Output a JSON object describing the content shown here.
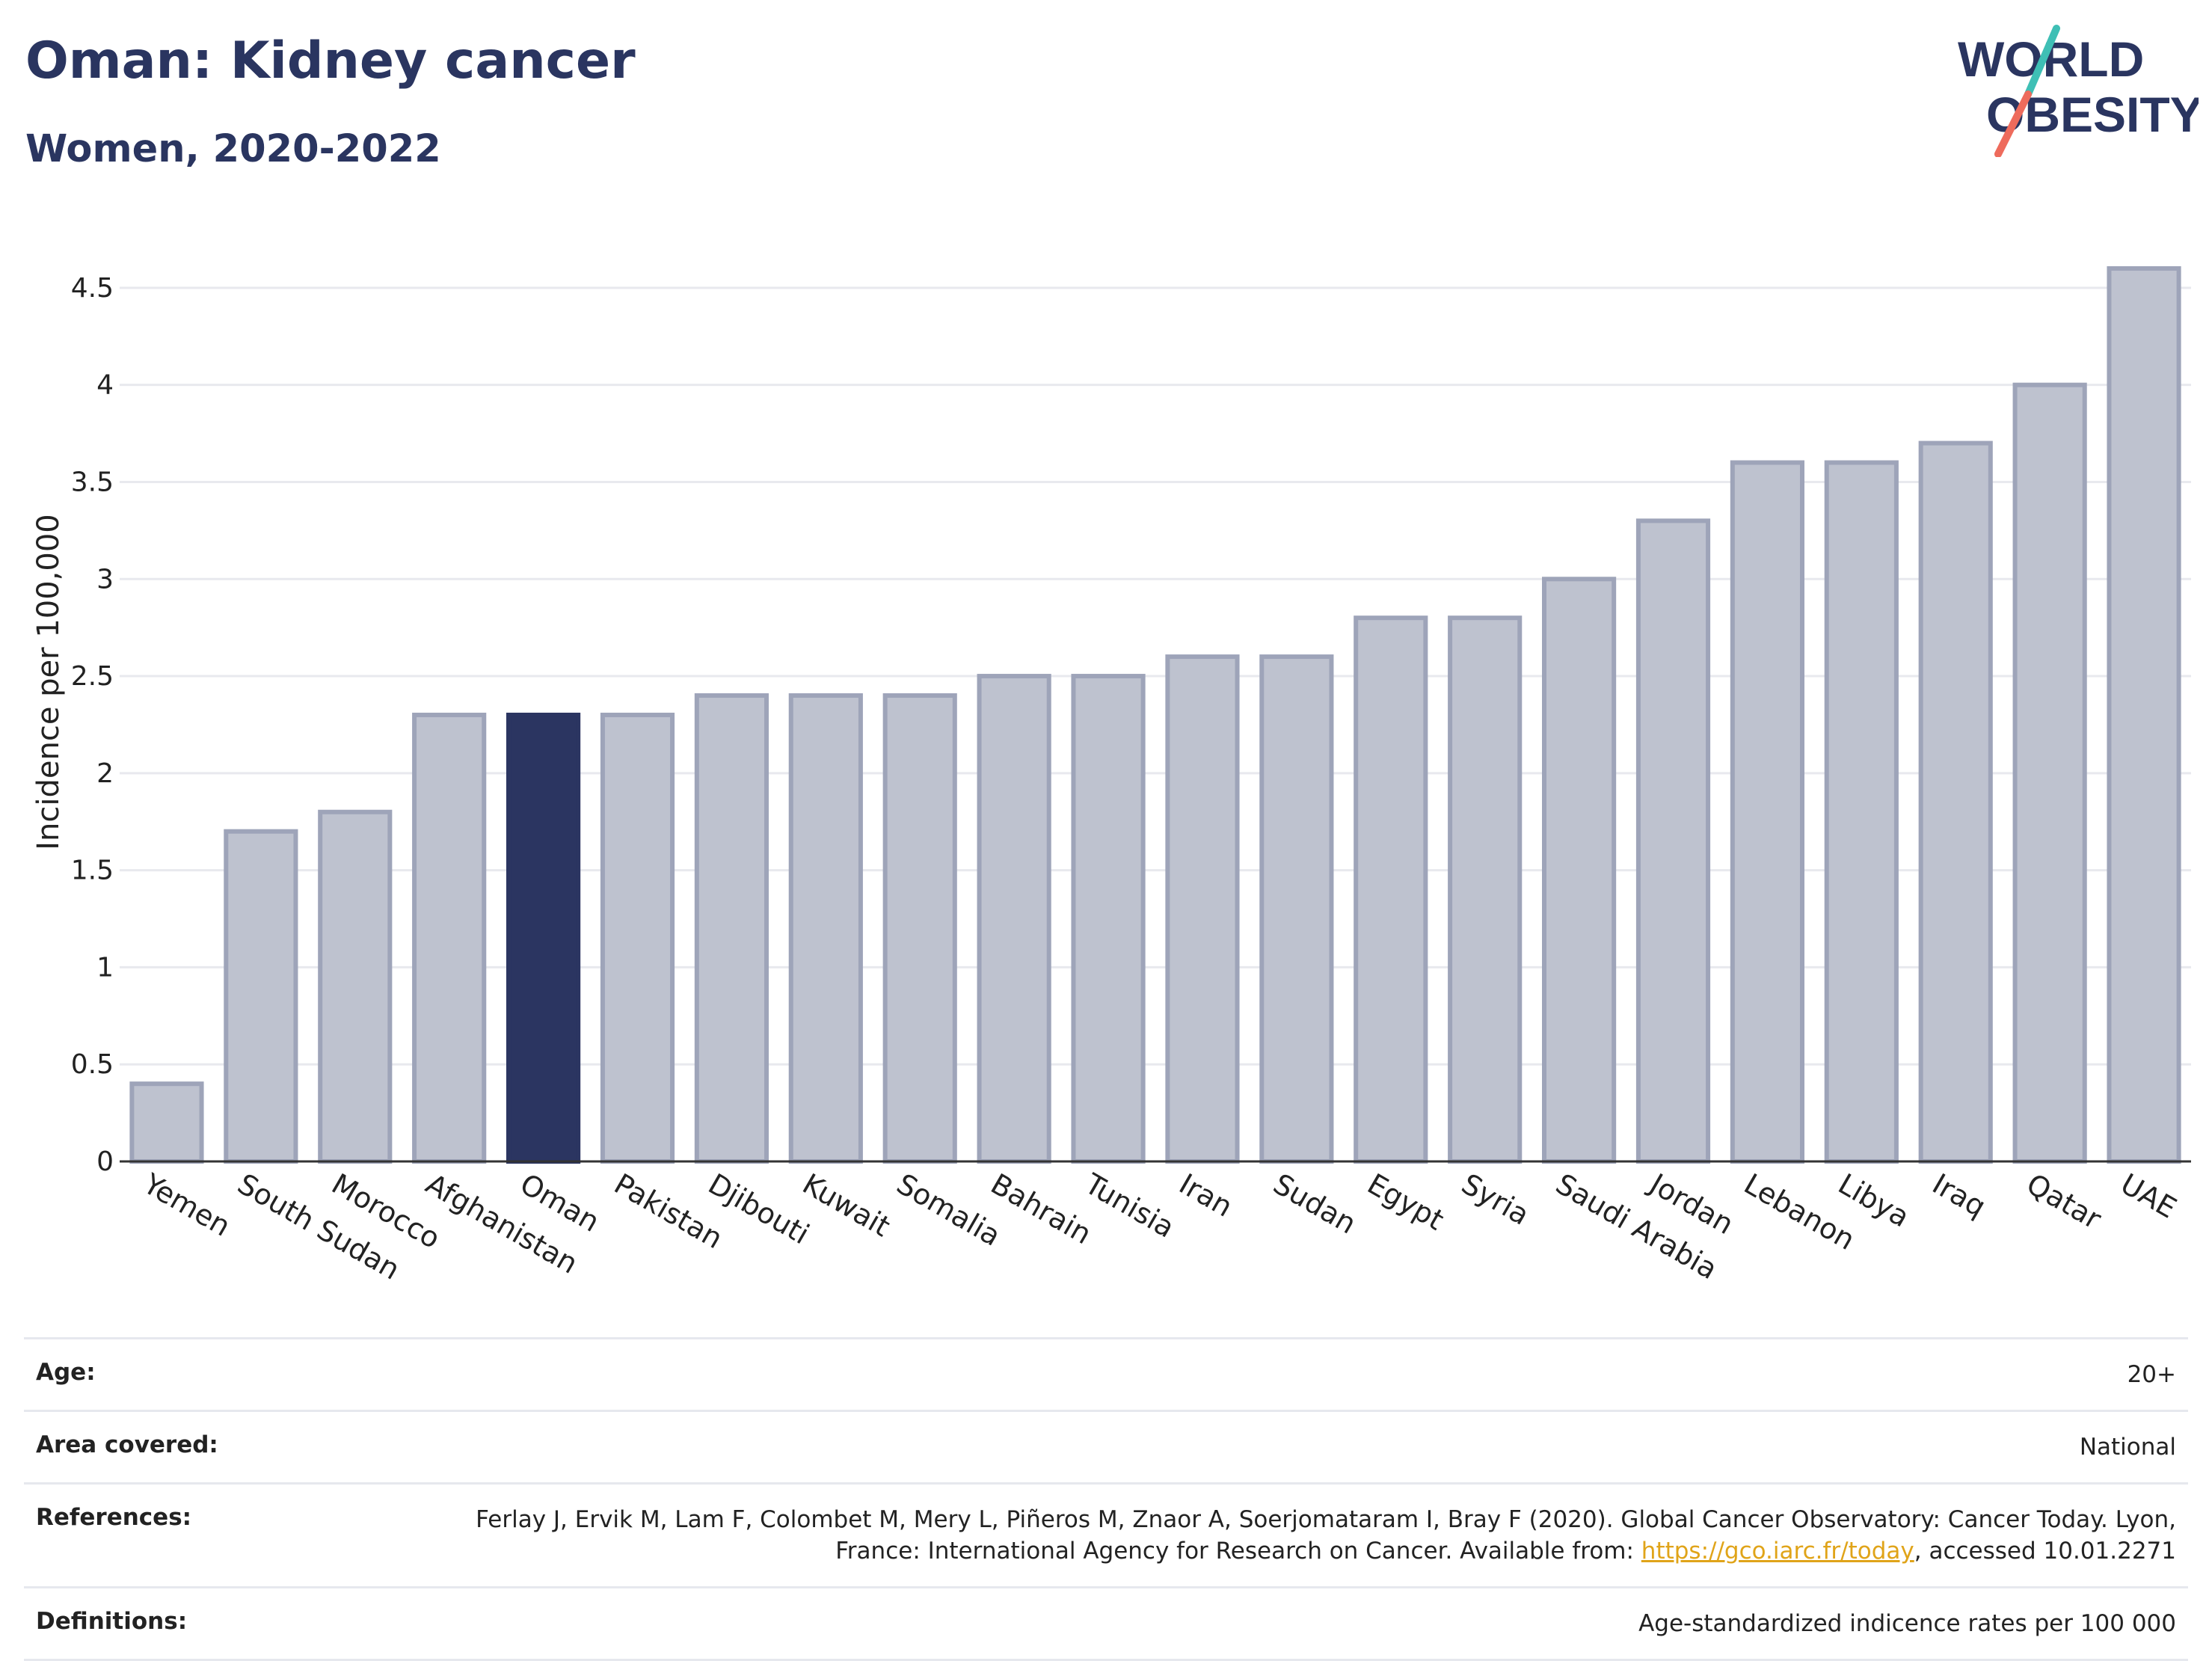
{
  "header": {
    "title": "Oman: Kidney cancer",
    "subtitle": "Women, 2020-2022",
    "logo_text": "WORLD OBESITY"
  },
  "colors": {
    "highlight": "#2b3561",
    "bar": "#bec2cf",
    "bar_border": "#9ea4b9",
    "title": "#2a3560",
    "link": "#e0a419",
    "logo_teal": "#3fbfb5",
    "logo_coral": "#ee6b5c"
  },
  "chart_data": {
    "type": "bar",
    "title": "Oman: Kidney cancer",
    "subtitle": "Women, 2020-2022",
    "ylabel": "Incidence per 100,000",
    "xlabel": "",
    "ylim": [
      0,
      4.75
    ],
    "yticks": [
      0,
      0.5,
      1,
      1.5,
      2,
      2.5,
      3,
      3.5,
      4,
      4.5
    ],
    "ytick_labels": [
      "0",
      "0.5",
      "1",
      "1.5",
      "2",
      "2.5",
      "3",
      "3.5",
      "4",
      "4.5"
    ],
    "grid": true,
    "highlight": "Oman",
    "categories": [
      "Yemen",
      "South Sudan",
      "Morocco",
      "Afghanistan",
      "Oman",
      "Pakistan",
      "Djibouti",
      "Kuwait",
      "Somalia",
      "Bahrain",
      "Tunisia",
      "Iran",
      "Sudan",
      "Egypt",
      "Syria",
      "Saudi Arabia",
      "Jordan",
      "Lebanon",
      "Libya",
      "Iraq",
      "Qatar",
      "UAE"
    ],
    "values": [
      0.4,
      1.7,
      1.8,
      2.3,
      2.3,
      2.3,
      2.4,
      2.4,
      2.4,
      2.5,
      2.5,
      2.6,
      2.6,
      2.8,
      2.8,
      3.0,
      3.3,
      3.6,
      3.6,
      3.7,
      4.0,
      4.6
    ]
  },
  "info": {
    "age_label": "Age:",
    "age_value": "20+",
    "area_label": "Area covered:",
    "area_value": "National",
    "references_label": "References:",
    "references_text": "Ferlay J, Ervik M, Lam F, Colombet M, Mery L, Piñeros M, Znaor A, Soerjomataram I, Bray F (2020). Global Cancer Observatory: Cancer Today. Lyon, France: International Agency for Research on Cancer. Available from: ",
    "references_link": "https://gco.iarc.fr/today",
    "references_tail": ", accessed 10.01.2271",
    "definitions_label": "Definitions:",
    "definitions_value": "Age-standardized indicence rates per 100 000"
  }
}
